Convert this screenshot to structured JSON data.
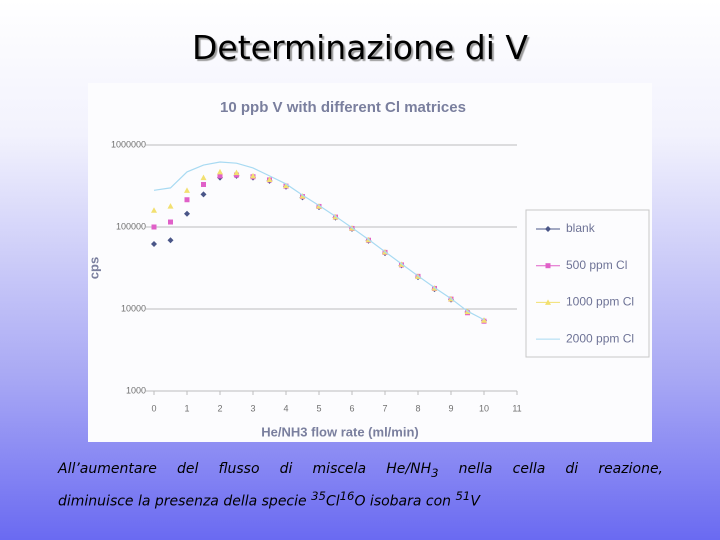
{
  "slide": {
    "title": "Determinazione di V",
    "caption": [
      "All’aumentare del flusso di miscela He/NH",
      "3",
      " nella cella di reazione,",
      "diminuisce la presenza della specie ",
      "35",
      "Cl",
      "16",
      "O isobara con ",
      "51",
      "V"
    ]
  },
  "chart_data": {
    "type": "scatter",
    "title": "10 ppb V with different Cl matrices",
    "x_label": "He/NH3 flow rate (ml/min)",
    "y_label": "cps",
    "x": [
      0,
      0.5,
      1,
      1.5,
      2,
      2.5,
      3,
      3.5,
      4,
      4.5,
      5,
      5.5,
      6,
      6.5,
      7,
      7.5,
      8,
      8.5,
      9,
      9.5,
      10
    ],
    "series": [
      {
        "name": "blank",
        "color": "#4a5688",
        "marker": "diamond",
        "values": [
          62000,
          69000,
          145000,
          250000,
          400000,
          420000,
          400000,
          365000,
          310000,
          230000,
          175000,
          130000,
          95000,
          68000,
          48000,
          34000,
          24500,
          17500,
          13000,
          9200,
          7200
        ]
      },
      {
        "name": "500 ppm Cl",
        "color": "#e060c8",
        "marker": "square",
        "values": [
          100000,
          115000,
          215000,
          330000,
          420000,
          430000,
          410000,
          375000,
          315000,
          235000,
          178000,
          132000,
          96000,
          69000,
          49000,
          34500,
          25000,
          17800,
          13200,
          9000,
          7100
        ]
      },
      {
        "name": "1000 ppm Cl",
        "color": "#f2e070",
        "marker": "triangle",
        "values": [
          160000,
          180000,
          280000,
          400000,
          470000,
          460000,
          420000,
          380000,
          320000,
          238000,
          180000,
          133000,
          97000,
          70000,
          49500,
          35000,
          25000,
          18000,
          13300,
          9300,
          7300
        ]
      },
      {
        "name": "2000 ppm Cl",
        "color": "#a8daf2",
        "marker": "none",
        "values": [
          280000,
          300000,
          470000,
          570000,
          620000,
          600000,
          525000,
          420000,
          335000,
          245000,
          183000,
          135000,
          98000,
          70500,
          50000,
          35500,
          25300,
          18200,
          13400,
          9400,
          7400
        ]
      }
    ],
    "xlim": [
      0,
      11
    ],
    "xticks": [
      0,
      1,
      2,
      3,
      4,
      5,
      6,
      7,
      8,
      9,
      10,
      11
    ],
    "ylim": [
      1000,
      1000000
    ],
    "yticks": [
      1000,
      10000,
      100000,
      1000000
    ],
    "log_y": true,
    "grid": true,
    "legend": "right"
  }
}
